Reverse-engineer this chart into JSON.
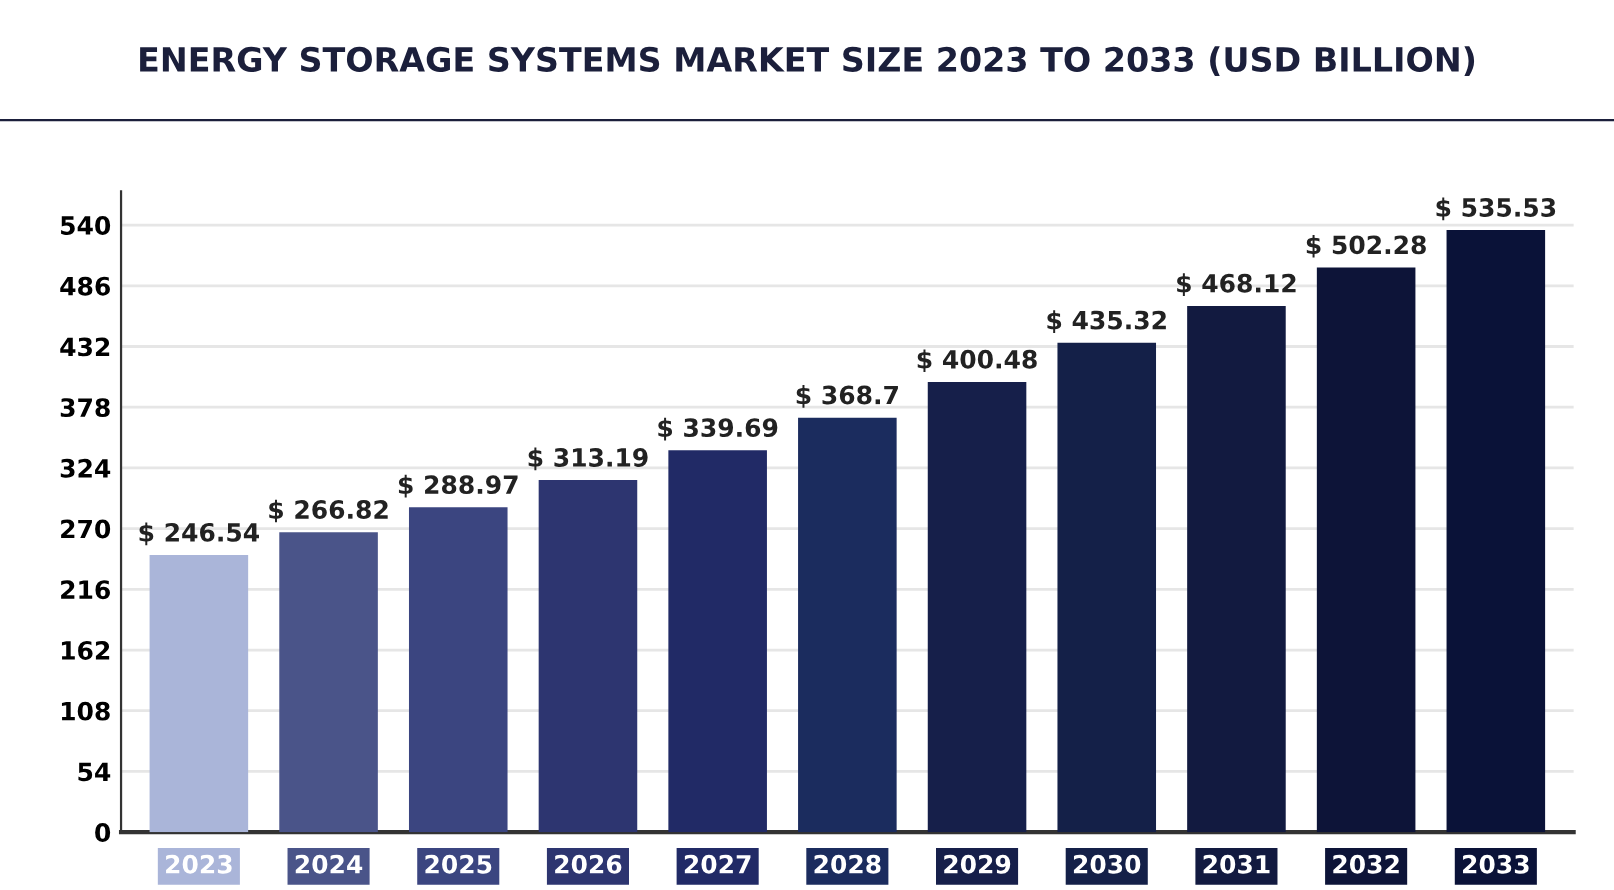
{
  "chart_data": {
    "type": "bar",
    "title": "ENERGY STORAGE SYSTEMS MARKET SIZE 2023 TO 2033 (USD BILLION)",
    "categories": [
      "2023",
      "2024",
      "2025",
      "2026",
      "2027",
      "2028",
      "2029",
      "2030",
      "2031",
      "2032",
      "2033"
    ],
    "values": [
      246.54,
      266.82,
      288.97,
      313.19,
      339.69,
      368.7,
      400.48,
      435.32,
      468.12,
      502.28,
      535.53
    ],
    "value_labels": [
      "$ 246.54",
      "$ 266.82",
      "$ 288.97",
      "$ 313.19",
      "$ 339.69",
      "$ 368.7",
      "$ 400.48",
      "$ 435.32",
      "$ 468.12",
      "$ 502.28",
      "$ 535.53"
    ],
    "colors": [
      "#aab5d9",
      "#4a5489",
      "#3b4580",
      "#2d3570",
      "#212a66",
      "#1b2c5e",
      "#161f4a",
      "#142048",
      "#121a40",
      "#0d1438",
      "#0a1238"
    ],
    "ylim": [
      0,
      570
    ],
    "yticks": [
      0,
      54,
      108,
      162,
      216,
      270,
      324,
      378,
      432,
      486,
      540
    ],
    "grid": "y"
  }
}
